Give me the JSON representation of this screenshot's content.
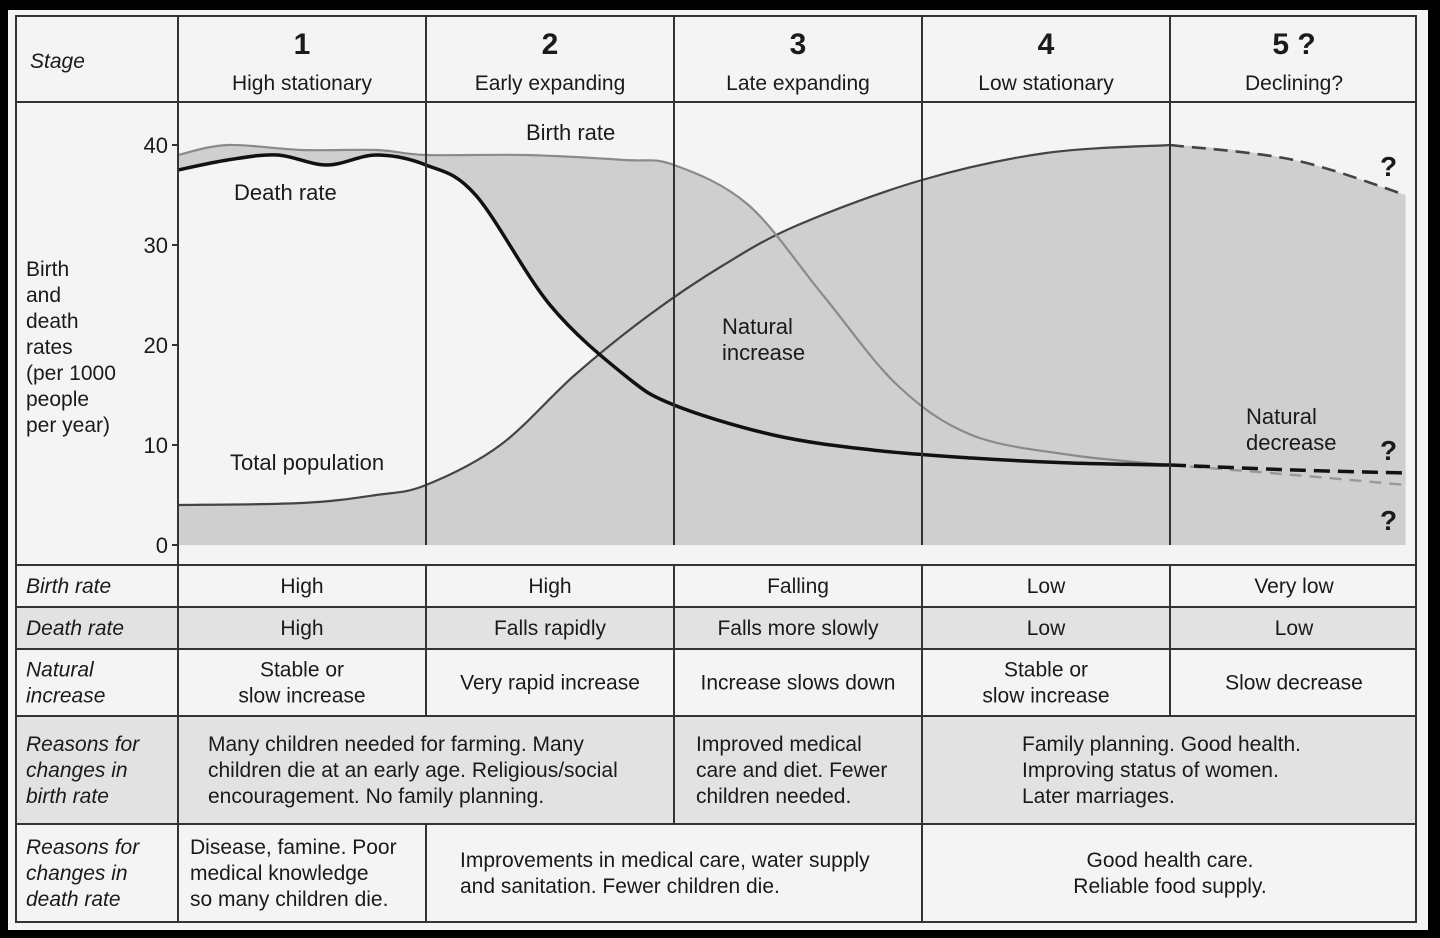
{
  "header": {
    "stage_label": "Stage",
    "stages": [
      {
        "num": "1",
        "name": "High stationary"
      },
      {
        "num": "2",
        "name": "Early expanding"
      },
      {
        "num": "3",
        "name": "Late expanding"
      },
      {
        "num": "4",
        "name": "Low stationary"
      },
      {
        "num": "5 ?",
        "name": "Declining?"
      }
    ]
  },
  "graph": {
    "ylabel_lines": [
      "Birth",
      "and",
      "death",
      "rates",
      "(per 1000",
      "people",
      "per year)"
    ],
    "yticks": [
      "0",
      "10",
      "20",
      "30",
      "40"
    ],
    "curve_labels": {
      "birth_rate": "Birth rate",
      "death_rate": "Death rate",
      "natural_increase": [
        "Natural",
        "increase"
      ],
      "total_population": "Total population",
      "natural_decrease": [
        "Natural",
        "decrease"
      ]
    },
    "question_mark": "?"
  },
  "chart_data": {
    "type": "line",
    "ylabel": "Birth and death rates (per 1000 people per year)",
    "ylim": [
      0,
      40
    ],
    "x_categories": [
      "1",
      "2",
      "3",
      "4",
      "5 ?"
    ],
    "series": [
      {
        "name": "Birth rate",
        "x": [
          0,
          0.2,
          0.5,
          0.8,
          1.0,
          1.4,
          1.8,
          2.0,
          2.3,
          2.6,
          2.9,
          3.2,
          3.6,
          4.0,
          4.5,
          4.95
        ],
        "values": [
          39,
          40,
          39.5,
          39.5,
          39,
          39,
          38.5,
          38,
          34,
          25,
          16,
          11,
          9,
          8,
          7,
          6
        ]
      },
      {
        "name": "Death rate",
        "x": [
          0,
          0.2,
          0.4,
          0.6,
          0.8,
          1.0,
          1.2,
          1.5,
          1.8,
          2.0,
          2.4,
          2.8,
          3.2,
          3.6,
          4.0,
          4.5,
          4.95
        ],
        "values": [
          37.5,
          38.5,
          39,
          38,
          39,
          38,
          35,
          24,
          17,
          14,
          11,
          9.5,
          8.7,
          8.2,
          8,
          7.5,
          7.2
        ]
      },
      {
        "name": "Total population",
        "x": [
          0,
          0.5,
          0.8,
          1.0,
          1.3,
          1.6,
          1.9,
          2.2,
          2.5,
          3.0,
          3.5,
          4.0,
          4.5,
          4.95
        ],
        "values": [
          4,
          4.2,
          5,
          6,
          10,
          17,
          23,
          28,
          32,
          36.5,
          39.2,
          40,
          38.5,
          35
        ]
      }
    ]
  },
  "rows": [
    {
      "label": "Birth rate",
      "cells": [
        {
          "lines": [
            "High"
          ]
        },
        {
          "lines": [
            "High"
          ]
        },
        {
          "lines": [
            "Falling"
          ]
        },
        {
          "lines": [
            "Low"
          ]
        },
        {
          "lines": [
            "Very low"
          ]
        }
      ]
    },
    {
      "label": "Death rate",
      "cells": [
        {
          "lines": [
            "High"
          ]
        },
        {
          "lines": [
            "Falls rapidly"
          ]
        },
        {
          "lines": [
            "Falls more slowly"
          ]
        },
        {
          "lines": [
            "Low"
          ]
        },
        {
          "lines": [
            "Low"
          ]
        }
      ]
    },
    {
      "label_lines": [
        "Natural",
        "increase"
      ],
      "cells": [
        {
          "lines": [
            "Stable or",
            "slow increase"
          ]
        },
        {
          "lines": [
            "Very rapid increase"
          ]
        },
        {
          "lines": [
            "Increase slows down"
          ]
        },
        {
          "lines": [
            "Stable or",
            "slow increase"
          ]
        },
        {
          "lines": [
            "Slow decrease"
          ]
        }
      ]
    },
    {
      "label_lines": [
        "Reasons for",
        "changes in",
        "birth rate"
      ],
      "cells": [
        {
          "lines": [
            "Many children needed for farming. Many",
            "children die at an early age. Religious/social",
            "encouragement. No family planning."
          ]
        },
        {
          "lines": [
            "Improved medical",
            "care and diet. Fewer",
            "children needed."
          ]
        },
        {
          "lines": [
            "Family planning. Good health.",
            "Improving status of women.",
            "Later marriages."
          ]
        }
      ]
    },
    {
      "label_lines": [
        "Reasons for",
        "changes in",
        "death rate"
      ],
      "cells": [
        {
          "lines": [
            "Disease, famine. Poor",
            "medical knowledge",
            "so many children die."
          ]
        },
        {
          "lines": [
            "Improvements in medical care, water supply",
            "and sanitation. Fewer children die."
          ]
        },
        {
          "lines": [
            "Good health care.",
            "Reliable food supply."
          ]
        }
      ]
    }
  ],
  "colors": {
    "shade": "#cfcfcf",
    "row_shade": "#e2e2e2",
    "line": "#111111",
    "birth_line": "#8a8a8a"
  }
}
